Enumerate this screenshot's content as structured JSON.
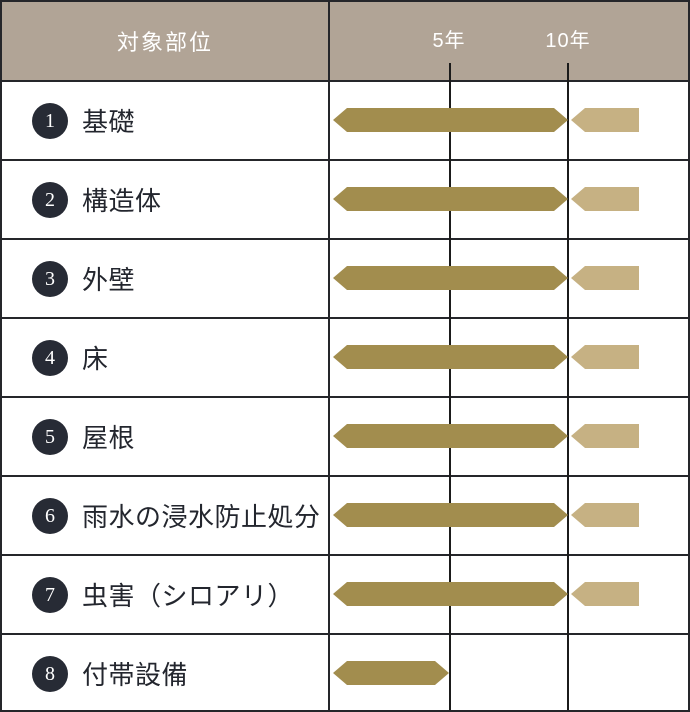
{
  "chart_data": {
    "type": "bar",
    "orientation": "horizontal",
    "title": "",
    "column_header": "対象部位",
    "x_axis": {
      "tick_labels": [
        "5年",
        "10年"
      ],
      "tick_values_years": [
        5,
        10
      ],
      "range_years": [
        0,
        15.1
      ],
      "grid": true
    },
    "rows": [
      {
        "num": "1",
        "label": "基礎",
        "bar_main_years": [
          0,
          10
        ],
        "bar_ext_years": [
          10,
          13
        ]
      },
      {
        "num": "2",
        "label": "構造体",
        "bar_main_years": [
          0,
          10
        ],
        "bar_ext_years": [
          10,
          13
        ]
      },
      {
        "num": "3",
        "label": "外壁",
        "bar_main_years": [
          0,
          10
        ],
        "bar_ext_years": [
          10,
          13
        ]
      },
      {
        "num": "4",
        "label": "床",
        "bar_main_years": [
          0,
          10
        ],
        "bar_ext_years": [
          10,
          13
        ]
      },
      {
        "num": "5",
        "label": "屋根",
        "bar_main_years": [
          0,
          10
        ],
        "bar_ext_years": [
          10,
          13
        ]
      },
      {
        "num": "6",
        "label": "雨水の浸水防止処分",
        "bar_main_years": [
          0,
          10
        ],
        "bar_ext_years": [
          10,
          13
        ]
      },
      {
        "num": "7",
        "label": "虫害（シロアリ）",
        "bar_main_years": [
          0,
          10
        ],
        "bar_ext_years": [
          10,
          13
        ]
      },
      {
        "num": "8",
        "label": "付帯設備",
        "bar_main_years": [
          0,
          5
        ],
        "bar_ext_years": null
      }
    ]
  },
  "colors": {
    "header_bg": "#b1a496",
    "bar_main": "#a28d4e",
    "bar_extension": "#c6b183",
    "badge_bg": "#272b35",
    "border": "#25262a",
    "grid_line": "#1b1b1b",
    "label_text": "#23262e",
    "header_text": "#ffffff",
    "row_bg": "#ffffff"
  }
}
